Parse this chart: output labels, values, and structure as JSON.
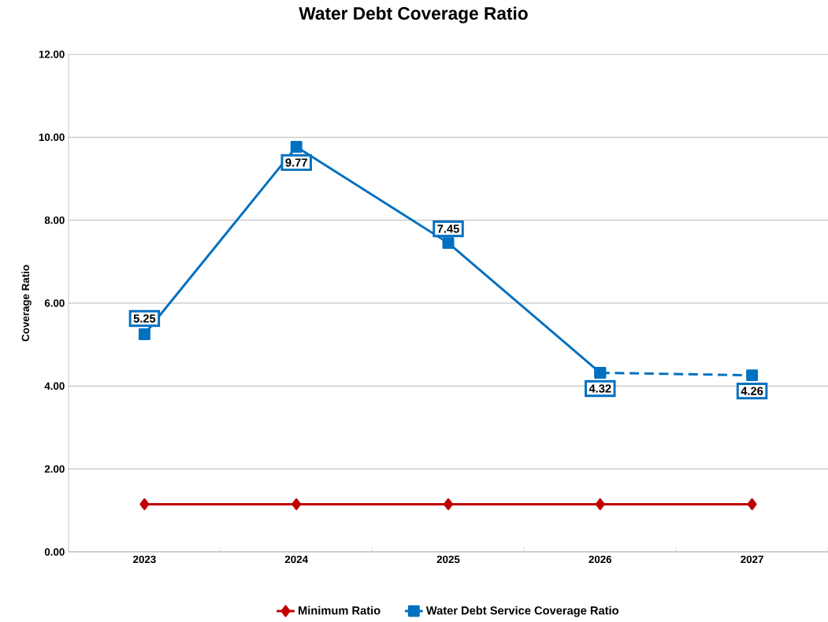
{
  "chart_data": {
    "type": "line",
    "title": "Water Debt Coverage Ratio",
    "ylabel": "Coverage Ratio",
    "categories": [
      "2023",
      "2024",
      "2025",
      "2026",
      "2027"
    ],
    "series": [
      {
        "name": "Minimum Ratio",
        "color": "#c00000",
        "marker": "diamond",
        "line_style": "solid",
        "values": [
          1.15,
          1.15,
          1.15,
          1.15,
          1.15
        ]
      },
      {
        "name": "Water Debt Service Coverage Ratio",
        "color": "#0070c0",
        "marker": "square",
        "line_style": "solid",
        "values": [
          5.25,
          9.77,
          7.45,
          4.32,
          null
        ],
        "value_labels": [
          "5.25",
          "9.77",
          "7.45",
          "4.32",
          null
        ]
      },
      {
        "color": "#0070c0",
        "marker": "square",
        "line_style": "dashed",
        "values": [
          null,
          null,
          null,
          4.32,
          4.26
        ],
        "value_labels": [
          null,
          null,
          null,
          null,
          "4.26"
        ]
      }
    ],
    "ylim": [
      0,
      12
    ],
    "yticks": [
      {
        "value": 0,
        "label": "0.00"
      },
      {
        "value": 2,
        "label": "2.00"
      },
      {
        "value": 4,
        "label": "4.00"
      },
      {
        "value": 6,
        "label": "6.00"
      },
      {
        "value": 8,
        "label": "8.00"
      },
      {
        "value": 10,
        "label": "10.00"
      },
      {
        "value": 12,
        "label": "12.00"
      }
    ],
    "grid": "y",
    "legend": "bottom"
  }
}
